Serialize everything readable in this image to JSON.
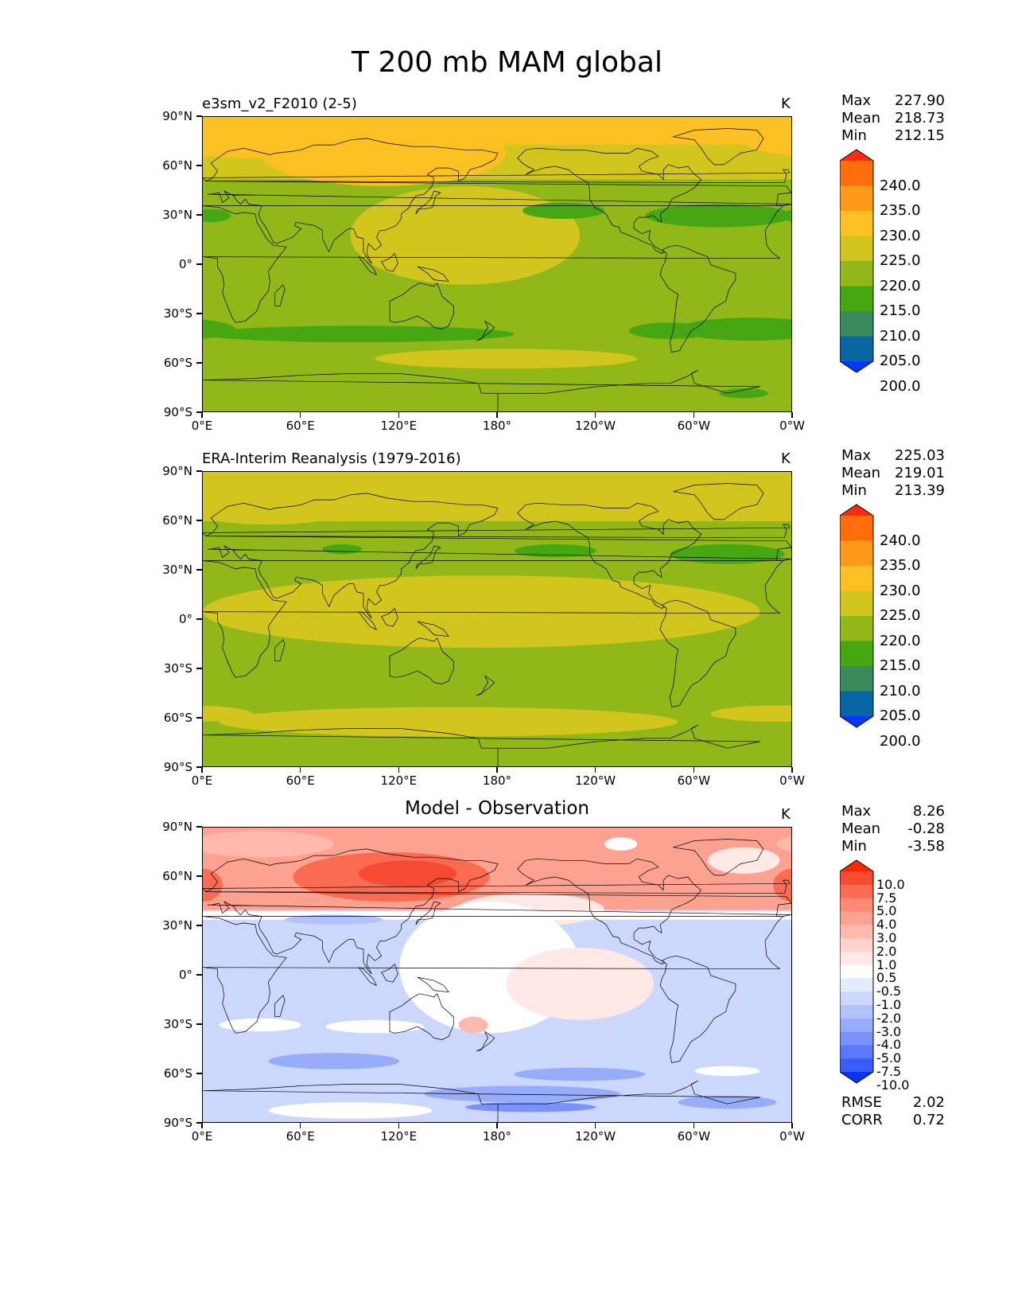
{
  "figure": {
    "title": "T 200 mb MAM global"
  },
  "axes": {
    "lat_labels": [
      "90°N",
      "60°N",
      "30°N",
      "0°",
      "30°S",
      "60°S",
      "90°S"
    ],
    "lon_labels": [
      "0°E",
      "60°E",
      "120°E",
      "180°",
      "120°W",
      "60°W",
      "0°W"
    ]
  },
  "panels": [
    {
      "title": "e3sm_v2_F2010 (2-5)",
      "title_style": "left",
      "units": "K",
      "stats": {
        "max_label": "Max",
        "max": "227.90",
        "mean_label": "Mean",
        "mean": "218.73",
        "min_label": "Min",
        "min": "212.15"
      },
      "colorbar": {
        "levels": [
          "240.0",
          "235.0",
          "230.0",
          "225.0",
          "220.0",
          "215.0",
          "210.0",
          "205.0",
          "200.0"
        ],
        "colors": [
          "#ff2a0f",
          "#ff6d0c",
          "#fd9a17",
          "#fcc023",
          "#d2c61e",
          "#92b719",
          "#47a713",
          "#3a8a5e",
          "#0867a3",
          "#0038ff"
        ],
        "extend": "both"
      }
    },
    {
      "title": "ERA-Interim Reanalysis (1979-2016)",
      "title_style": "left",
      "units": "K",
      "stats": {
        "max_label": "Max",
        "max": "225.03",
        "mean_label": "Mean",
        "mean": "219.01",
        "min_label": "Min",
        "min": "213.39"
      },
      "colorbar": {
        "levels": [
          "240.0",
          "235.0",
          "230.0",
          "225.0",
          "220.0",
          "215.0",
          "210.0",
          "205.0",
          "200.0"
        ],
        "colors": [
          "#ff2a0f",
          "#ff6d0c",
          "#fd9a17",
          "#fcc023",
          "#d2c61e",
          "#92b719",
          "#47a713",
          "#3a8a5e",
          "#0867a3",
          "#0038ff"
        ],
        "extend": "both"
      }
    },
    {
      "title": "Model - Observation",
      "title_style": "center",
      "units": "K",
      "stats": {
        "max_label": "Max",
        "max": "8.26",
        "mean_label": "Mean",
        "mean": "-0.28",
        "min_label": "Min",
        "min": "-3.58"
      },
      "colorbar": {
        "levels": [
          "10.0",
          "7.5",
          "5.0",
          "4.0",
          "3.0",
          "2.0",
          "1.0",
          "0.5",
          "-0.5",
          "-1.0",
          "-2.0",
          "-3.0",
          "-4.0",
          "-5.0",
          "-7.5",
          "-10.0"
        ],
        "colors": [
          "#ff2600",
          "#f64a33",
          "#fb6b52",
          "#fc8a75",
          "#fda191",
          "#feb9ac",
          "#ffd3cc",
          "#ffe9e6",
          "#ffffff",
          "#e4ebfe",
          "#cbd7fd",
          "#b2c3fc",
          "#97acfb",
          "#7b92fa",
          "#5c78f9",
          "#3a5df8",
          "#0a32ff"
        ],
        "extend": "both"
      },
      "metrics": {
        "rmse_label": "RMSE",
        "rmse": "2.02",
        "corr_label": "CORR",
        "corr": "0.72"
      }
    }
  ]
}
